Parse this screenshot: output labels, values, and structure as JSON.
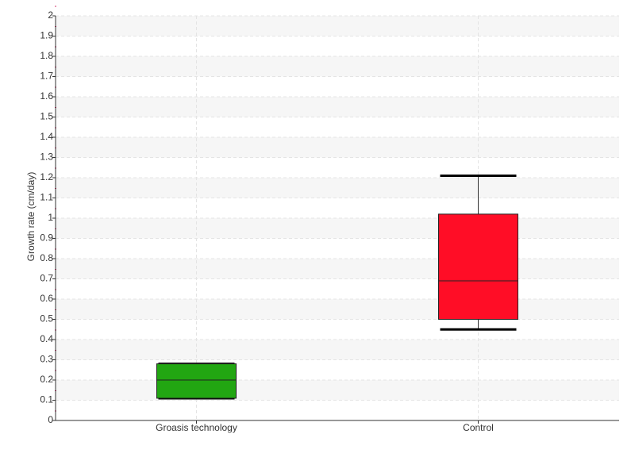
{
  "chart_data": {
    "type": "box",
    "y_label": "Growth rate (cm/day)",
    "categories": [
      "Groasis technology",
      "Control"
    ],
    "boxes": [
      {
        "min": 0.11,
        "q1": 0.11,
        "median": 0.2,
        "q3": 0.28,
        "max": 0.28,
        "color": "#22a612"
      },
      {
        "min": 0.45,
        "q1": 0.5,
        "median": 0.69,
        "q3": 1.02,
        "max": 1.21,
        "color": "#ff0d26"
      }
    ],
    "ylim": [
      0,
      2
    ],
    "yticks": [
      0,
      0.1,
      0.2,
      0.3,
      0.4,
      0.5,
      0.6,
      0.7,
      0.8,
      0.9,
      1,
      1.1,
      1.2,
      1.3,
      1.4,
      1.5,
      1.6,
      1.7,
      1.8,
      1.9,
      2
    ],
    "grid": true
  }
}
